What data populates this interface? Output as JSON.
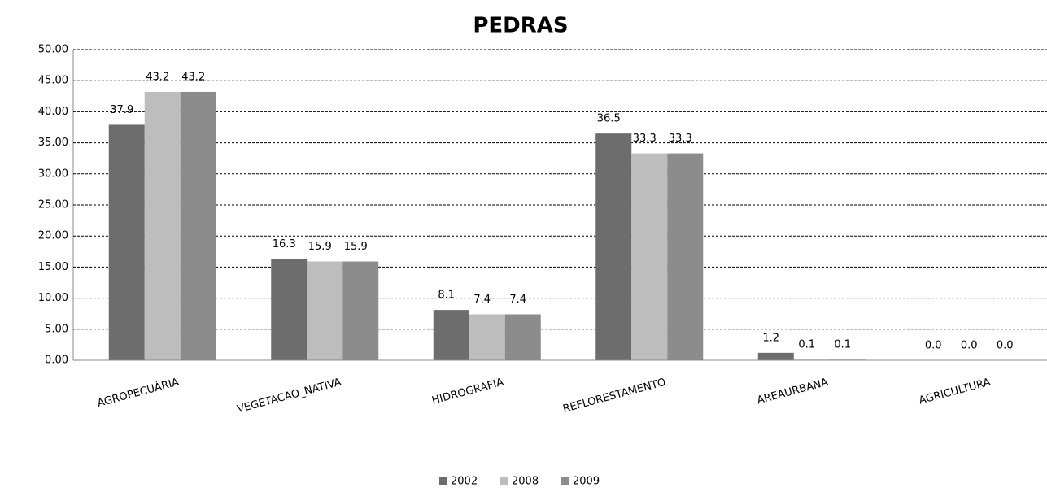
{
  "chart_data": {
    "type": "bar",
    "title": "PEDRAS",
    "categories": [
      "AGROPECUÁRIA",
      "VEGETACAO_NATIVA",
      "HIDROGRAFIA",
      "REFLORESTAMENTO",
      "AREAURBANA",
      "AGRICULTURA"
    ],
    "series": [
      {
        "name": "2002",
        "color": "#6d6d6d",
        "values": [
          37.9,
          16.3,
          8.1,
          36.5,
          1.2,
          0.0
        ],
        "value_labels": [
          "37.9",
          "16.3",
          "8.1",
          "36.5",
          "1.2",
          "0.0"
        ]
      },
      {
        "name": "2008",
        "color": "#bdbdbd",
        "values": [
          43.2,
          15.9,
          7.4,
          33.3,
          0.1,
          0.0
        ],
        "value_labels": [
          "43.2",
          "15.9",
          "7.4",
          "33.3",
          "0.1",
          "0.0"
        ]
      },
      {
        "name": "2009",
        "color": "#8c8c8c",
        "values": [
          43.2,
          15.9,
          7.4,
          33.3,
          0.1,
          0.0
        ],
        "value_labels": [
          "43.2",
          "15.9",
          "7.4",
          "33.3",
          "0.1",
          "0.0"
        ]
      }
    ],
    "ylim": [
      0,
      50
    ],
    "yticks": [
      {
        "value": 0,
        "label": "0.00"
      },
      {
        "value": 5,
        "label": "5.00"
      },
      {
        "value": 10,
        "label": "10.00"
      },
      {
        "value": 15,
        "label": "15.00"
      },
      {
        "value": 20,
        "label": "20.00"
      },
      {
        "value": 25,
        "label": "25.00"
      },
      {
        "value": 30,
        "label": "30.00"
      },
      {
        "value": 35,
        "label": "35.00"
      },
      {
        "value": 40,
        "label": "40.00"
      },
      {
        "value": 45,
        "label": "45.00"
      },
      {
        "value": 50,
        "label": "50.00"
      }
    ],
    "grid": true,
    "legend": "bottom"
  }
}
